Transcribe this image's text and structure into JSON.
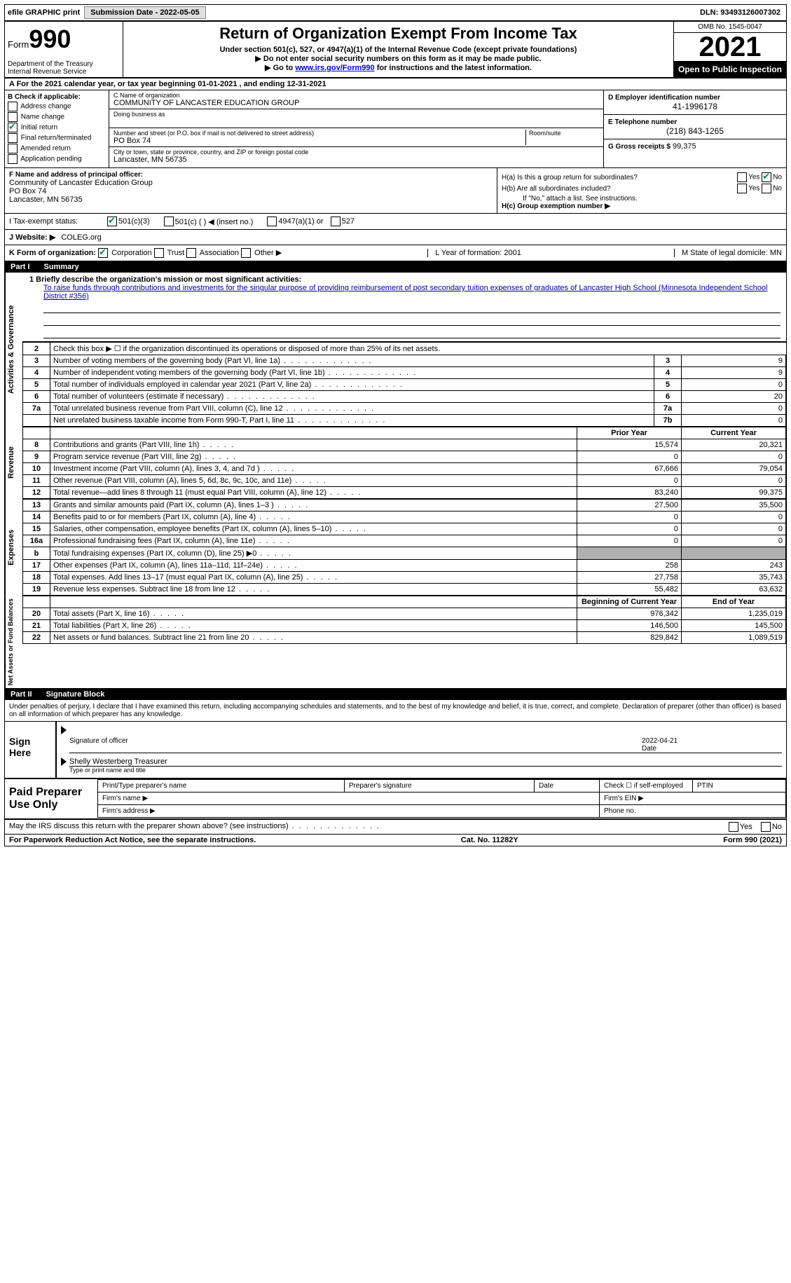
{
  "topbar": {
    "efile": "efile GRAPHIC print",
    "submission": "Submission Date - 2022-05-05",
    "dln": "DLN: 93493126007302"
  },
  "header": {
    "form_word": "Form",
    "form_num": "990",
    "dept": "Department of the Treasury\nInternal Revenue Service",
    "title": "Return of Organization Exempt From Income Tax",
    "sub1": "Under section 501(c), 527, or 4947(a)(1) of the Internal Revenue Code (except private foundations)",
    "sub2": "▶ Do not enter social security numbers on this form as it may be made public.",
    "sub3_pre": "▶ Go to ",
    "sub3_link": "www.irs.gov/Form990",
    "sub3_post": " for instructions and the latest information.",
    "omb": "OMB No. 1545-0047",
    "year": "2021",
    "inspection": "Open to Public Inspection"
  },
  "row_a": "A  For the 2021 calendar year, or tax year beginning 01-01-2021   , and ending 12-31-2021",
  "col_b": {
    "title": "B Check if applicable:",
    "opts": [
      "Address change",
      "Name change",
      "Initial return",
      "Final return/terminated",
      "Amended return",
      "Application pending"
    ]
  },
  "col_c": {
    "name_lbl": "C Name of organization",
    "name": "COMMUNITY OF LANCASTER EDUCATION GROUP",
    "dba_lbl": "Doing business as",
    "street_lbl": "Number and street (or P.O. box if mail is not delivered to street address)",
    "room_lbl": "Room/suite",
    "street": "PO Box 74",
    "city_lbl": "City or town, state or province, country, and ZIP or foreign postal code",
    "city": "Lancaster, MN  56735"
  },
  "col_d": {
    "ein_lbl": "D Employer identification number",
    "ein": "41-1996178",
    "phone_lbl": "E Telephone number",
    "phone": "(218) 843-1265",
    "gross_lbl": "G Gross receipts $",
    "gross": "99,375"
  },
  "row_f": {
    "lbl": "F Name and address of principal officer:",
    "name": "Community of Lancaster Education Group",
    "addr1": "PO Box 74",
    "addr2": "Lancaster, MN  56735"
  },
  "row_h": {
    "ha": "H(a)  Is this a group return for subordinates?",
    "hb": "H(b)  Are all subordinates included?",
    "hb_note": "If \"No,\" attach a list. See instructions.",
    "hc": "H(c)  Group exemption number ▶",
    "yes": "Yes",
    "no": "No"
  },
  "row_i": {
    "lbl": "I   Tax-exempt status:",
    "o1": "501(c)(3)",
    "o2": "501(c) (  ) ◀ (insert no.)",
    "o3": "4947(a)(1) or",
    "o4": "527"
  },
  "row_j": {
    "lbl": "J   Website: ▶",
    "val": "COLEG.org"
  },
  "row_k": {
    "lbl": "K Form of organization:",
    "opts": [
      "Corporation",
      "Trust",
      "Association",
      "Other ▶"
    ],
    "l": "L Year of formation: 2001",
    "m": "M State of legal domicile: MN"
  },
  "part1": {
    "num": "Part I",
    "title": "Summary"
  },
  "line1": {
    "lbl": "1   Briefly describe the organization's mission or most significant activities:",
    "mission": "To raise funds through contributions and investments for the singular purpose of providing reimbursement of post secondary tuition expenses of graduates of Lancaster High School (Minnesota Independent School District #356)"
  },
  "vlabels": {
    "act": "Activities & Governance",
    "rev": "Revenue",
    "exp": "Expenses",
    "net": "Net Assets or Fund Balances"
  },
  "lines_gov": [
    {
      "n": "2",
      "d": "Check this box ▶ ☐  if the organization discontinued its operations or disposed of more than 25% of its net assets.",
      "type": "noval"
    },
    {
      "n": "3",
      "d": "Number of voting members of the governing body (Part VI, line 1a)",
      "box": "3",
      "v": "9"
    },
    {
      "n": "4",
      "d": "Number of independent voting members of the governing body (Part VI, line 1b)",
      "box": "4",
      "v": "9"
    },
    {
      "n": "5",
      "d": "Total number of individuals employed in calendar year 2021 (Part V, line 2a)",
      "box": "5",
      "v": "0"
    },
    {
      "n": "6",
      "d": "Total number of volunteers (estimate if necessary)",
      "box": "6",
      "v": "20"
    },
    {
      "n": "7a",
      "d": "Total unrelated business revenue from Part VIII, column (C), line 12",
      "box": "7a",
      "v": "0"
    },
    {
      "n": "",
      "d": "Net unrelated business taxable income from Form 990-T, Part I, line 11",
      "box": "7b",
      "v": "0"
    }
  ],
  "yr_head": {
    "prior": "Prior Year",
    "current": "Current Year"
  },
  "lines_rev": [
    {
      "n": "8",
      "d": "Contributions and grants (Part VIII, line 1h)",
      "p": "15,574",
      "c": "20,321"
    },
    {
      "n": "9",
      "d": "Program service revenue (Part VIII, line 2g)",
      "p": "0",
      "c": "0"
    },
    {
      "n": "10",
      "d": "Investment income (Part VIII, column (A), lines 3, 4, and 7d )",
      "p": "67,666",
      "c": "79,054"
    },
    {
      "n": "11",
      "d": "Other revenue (Part VIII, column (A), lines 5, 6d, 8c, 9c, 10c, and 11e)",
      "p": "0",
      "c": "0"
    },
    {
      "n": "12",
      "d": "Total revenue—add lines 8 through 11 (must equal Part VIII, column (A), line 12)",
      "p": "83,240",
      "c": "99,375"
    }
  ],
  "lines_exp": [
    {
      "n": "13",
      "d": "Grants and similar amounts paid (Part IX, column (A), lines 1–3 )",
      "p": "27,500",
      "c": "35,500"
    },
    {
      "n": "14",
      "d": "Benefits paid to or for members (Part IX, column (A), line 4)",
      "p": "0",
      "c": "0"
    },
    {
      "n": "15",
      "d": "Salaries, other compensation, employee benefits (Part IX, column (A), lines 5–10)",
      "p": "0",
      "c": "0"
    },
    {
      "n": "16a",
      "d": "Professional fundraising fees (Part IX, column (A), line 11e)",
      "p": "0",
      "c": "0"
    },
    {
      "n": "b",
      "d": "Total fundraising expenses (Part IX, column (D), line 25) ▶0",
      "p": "",
      "c": "",
      "shaded": true
    },
    {
      "n": "17",
      "d": "Other expenses (Part IX, column (A), lines 11a–11d, 11f–24e)",
      "p": "258",
      "c": "243"
    },
    {
      "n": "18",
      "d": "Total expenses. Add lines 13–17 (must equal Part IX, column (A), line 25)",
      "p": "27,758",
      "c": "35,743"
    },
    {
      "n": "19",
      "d": "Revenue less expenses. Subtract line 18 from line 12",
      "p": "55,482",
      "c": "63,632"
    }
  ],
  "yr_head2": {
    "prior": "Beginning of Current Year",
    "current": "End of Year"
  },
  "lines_net": [
    {
      "n": "20",
      "d": "Total assets (Part X, line 16)",
      "p": "976,342",
      "c": "1,235,019"
    },
    {
      "n": "21",
      "d": "Total liabilities (Part X, line 26)",
      "p": "146,500",
      "c": "145,500"
    },
    {
      "n": "22",
      "d": "Net assets or fund balances. Subtract line 21 from line 20",
      "p": "829,842",
      "c": "1,089,519"
    }
  ],
  "part2": {
    "num": "Part II",
    "title": "Signature Block"
  },
  "sig": {
    "declaration": "Under penalties of perjury, I declare that I have examined this return, including accompanying schedules and statements, and to the best of my knowledge and belief, it is true, correct, and complete. Declaration of preparer (other than officer) is based on all information of which preparer has any knowledge.",
    "sign_here": "Sign Here",
    "sig_officer": "Signature of officer",
    "date_lbl": "Date",
    "date": "2022-04-21",
    "name": "Shelly Westerberg  Treasurer",
    "name_lbl": "Type or print name and title"
  },
  "paid": {
    "lbl": "Paid Preparer Use Only",
    "h1": "Print/Type preparer's name",
    "h2": "Preparer's signature",
    "h3": "Date",
    "h4": "Check ☐ if self-employed",
    "h5": "PTIN",
    "firm_name": "Firm's name    ▶",
    "firm_ein": "Firm's EIN ▶",
    "firm_addr": "Firm's address ▶",
    "phone": "Phone no."
  },
  "bottom": {
    "q": "May the IRS discuss this return with the preparer shown above? (see instructions)",
    "yes": "Yes",
    "no": "No"
  },
  "footer": {
    "left": "For Paperwork Reduction Act Notice, see the separate instructions.",
    "mid": "Cat. No. 11282Y",
    "right": "Form 990 (2021)"
  }
}
